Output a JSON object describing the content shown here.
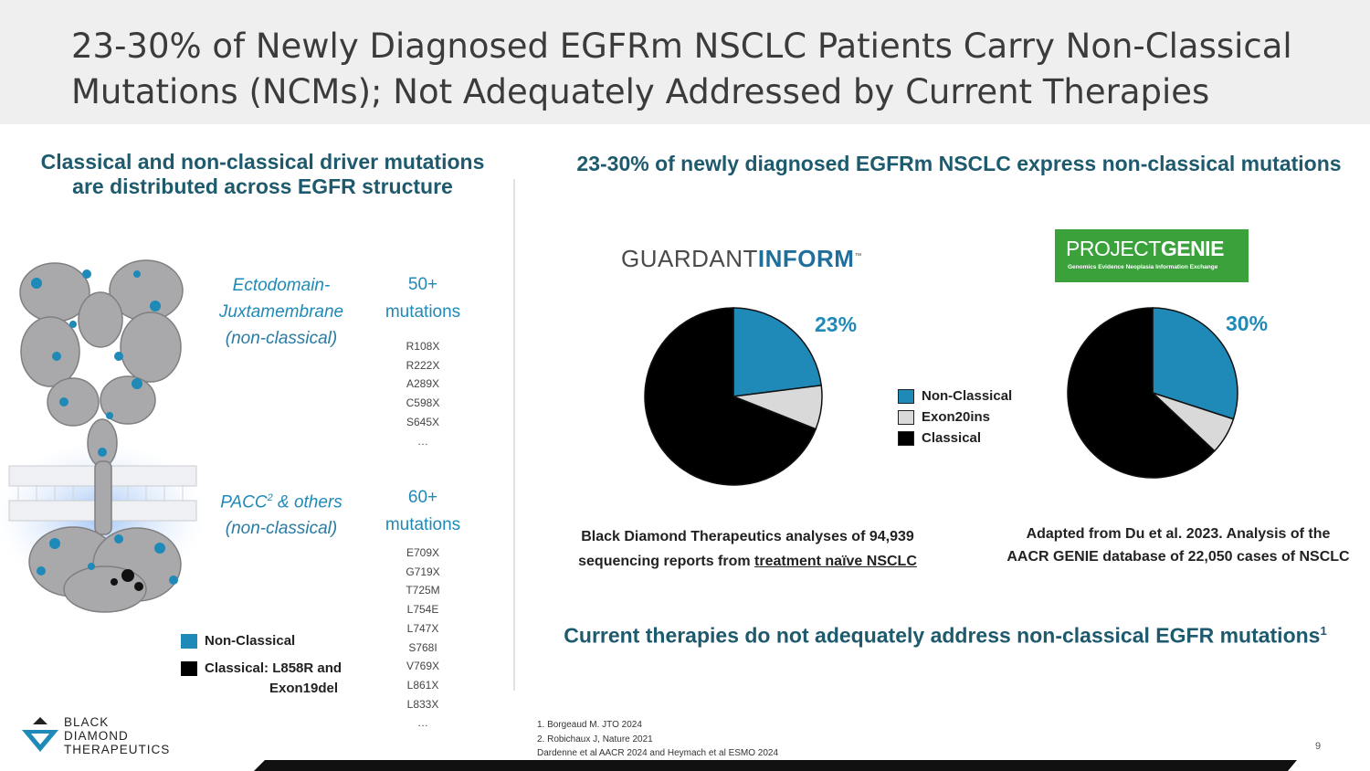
{
  "title": "23-30% of Newly Diagnosed EGFRm NSCLC Patients Carry Non-Classical Mutations (NCMs); Not Adequately Addressed by Current Therapies",
  "left": {
    "heading_line1": "Classical and non-classical driver mutations",
    "heading_line2": "are distributed across EGFR structure",
    "ecto_label_line1": "Ectodomain-",
    "ecto_label_line2": "Juxtamembrane",
    "ecto_sub": "(non-classical)",
    "ecto_count_line1": "50+",
    "ecto_count_line2": "mutations",
    "ecto_mutations": [
      "R108X",
      "R222X",
      "A289X",
      "C598X",
      "S645X",
      "…"
    ],
    "pacc_label": "PACC",
    "pacc_sup": "2",
    "pacc_label_rest": " & others",
    "pacc_sub": "(non-classical)",
    "pacc_count_line1": "60+",
    "pacc_count_line2": "mutations",
    "pacc_mutations": [
      "E709X",
      "G719X",
      "T725M",
      "L754E",
      "L747X",
      "S768I",
      "V769X",
      "L861X",
      "L833X",
      "…"
    ],
    "legend_nonclassical": "Non-Classical",
    "legend_classical_line1": "Classical: L858R and",
    "legend_classical_line2": "Exon19del"
  },
  "right": {
    "heading": "23-30% of newly diagnosed EGFRm NSCLC express non-classical mutations",
    "guardant_logo_light": "GUARDANT",
    "guardant_logo_bold": "INFORM",
    "guardant_tm": "™",
    "genie_logo_light": "PROJECT",
    "genie_logo_bold": "GENIE",
    "genie_logo_tagline": "Genomics Evidence Neoplasia Information Exchange",
    "legend": [
      "Non-Classical",
      "Exon20ins",
      "Classical"
    ],
    "caption_left_line1": "Black Diamond Therapeutics analyses of 94,939",
    "caption_left_line2_prefix": "sequencing reports from ",
    "caption_left_line2_underlined": "treatment naïve NSCLC",
    "caption_right_line1": "Adapted from Du et al. 2023. Analysis of the",
    "caption_right_line2": "AACR GENIE database of 22,050 cases of NSCLC",
    "bottom_heading": "Current therapies do not adequately address non-classical EGFR mutations",
    "bottom_heading_sup": "1"
  },
  "footnotes": [
    "1. Borgeaud M. JTO 2024",
    "2. Robichaux J, Nature 2021",
    "Dardenne et al AACR 2024 and Heymach et al ESMO 2024"
  ],
  "page_number": "9",
  "company": {
    "line1": "BLACK",
    "line2": "DIAMOND",
    "line3": "THERAPEUTICS"
  },
  "colors": {
    "nonclassical": "#1f8ab8",
    "exon20ins": "#d9d9d9",
    "classical": "#000000",
    "heading": "#1e5a6e"
  },
  "chart_data": [
    {
      "type": "pie",
      "title": "",
      "label": "23%",
      "slices": [
        {
          "name": "Non-Classical",
          "value": 23
        },
        {
          "name": "Exon20ins",
          "value": 8
        },
        {
          "name": "Classical",
          "value": 69
        }
      ],
      "legend": "right"
    },
    {
      "type": "pie",
      "title": "",
      "label": "30%",
      "slices": [
        {
          "name": "Non-Classical",
          "value": 30
        },
        {
          "name": "Exon20ins",
          "value": 7
        },
        {
          "name": "Classical",
          "value": 63
        }
      ],
      "legend": "left"
    }
  ]
}
